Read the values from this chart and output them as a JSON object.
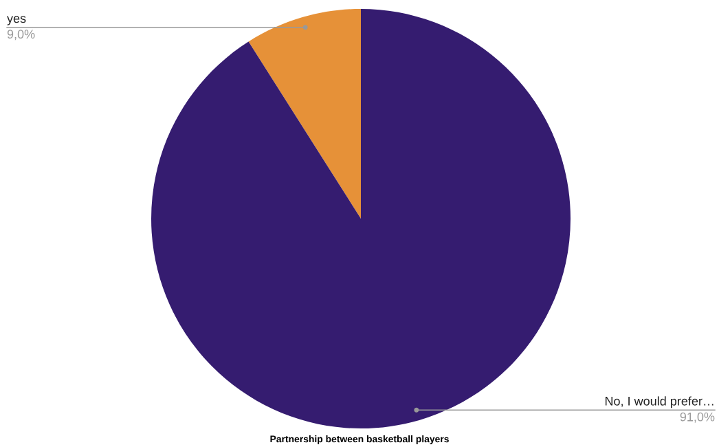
{
  "chart_data": {
    "type": "pie",
    "title": "Partnership between basketball players",
    "categories": [
      "yes",
      "No, I would prefer…"
    ],
    "values": [
      9.0,
      91.0
    ],
    "value_labels": [
      "9,0%",
      "91,0%"
    ],
    "colors": [
      "#e69138",
      "#351c70"
    ],
    "legend": false
  }
}
